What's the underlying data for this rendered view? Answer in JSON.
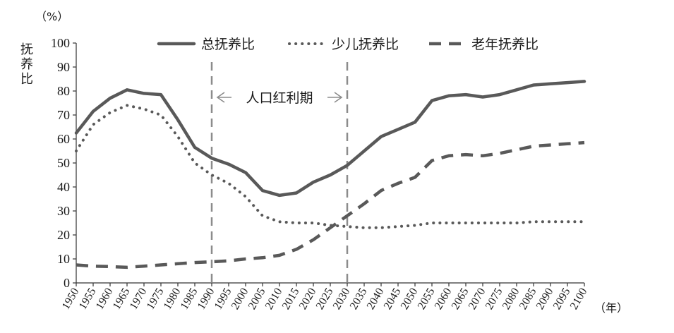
{
  "chart_data": {
    "type": "line",
    "unit_label": "（%）",
    "ylabel": "抚养比",
    "xlabel": "（年）",
    "ylim": [
      0,
      100
    ],
    "yticks": [
      0,
      10,
      20,
      30,
      40,
      50,
      60,
      70,
      80,
      90,
      100
    ],
    "x": [
      1950,
      1955,
      1960,
      1965,
      1970,
      1975,
      1980,
      1985,
      1990,
      1995,
      2000,
      2005,
      2010,
      2015,
      2020,
      2025,
      2030,
      2035,
      2040,
      2045,
      2050,
      2055,
      2060,
      2065,
      2070,
      2075,
      2080,
      2085,
      2090,
      2095,
      2100
    ],
    "legend_position": "top",
    "annotation": {
      "label": "人口红利期",
      "x_start": 1990,
      "x_end": 2030
    },
    "series": [
      {
        "name": "总抚养比",
        "style": "solid",
        "color": "#595959",
        "values": [
          62.5,
          71.5,
          77,
          80.5,
          79,
          78.5,
          68,
          56.5,
          52,
          49.5,
          46,
          38.5,
          36.5,
          37.5,
          42,
          45,
          49,
          55,
          61,
          64,
          67,
          76,
          78,
          78.5,
          77.5,
          78.5,
          80.5,
          82.5,
          83,
          83.5,
          84
        ]
      },
      {
        "name": "少儿抚养比",
        "style": "dotted",
        "color": "#595959",
        "values": [
          55,
          66,
          71,
          74,
          72.5,
          70,
          61,
          50,
          45,
          41.5,
          36,
          28,
          25.5,
          25,
          25,
          24,
          23.5,
          23,
          23,
          23.5,
          24,
          25,
          25,
          25,
          25,
          25,
          25,
          25.5,
          25.5,
          25.5,
          25.5
        ]
      },
      {
        "name": "老年抚养比",
        "style": "dashed",
        "color": "#595959",
        "values": [
          7.5,
          7,
          6.8,
          6.5,
          7,
          7.5,
          8,
          8.5,
          8.8,
          9.2,
          10,
          10.5,
          11.5,
          14,
          18,
          23,
          28,
          33,
          38.5,
          41.5,
          44,
          51,
          53,
          53.5,
          53,
          54,
          55.5,
          57,
          57.5,
          58,
          58.5
        ]
      }
    ]
  }
}
